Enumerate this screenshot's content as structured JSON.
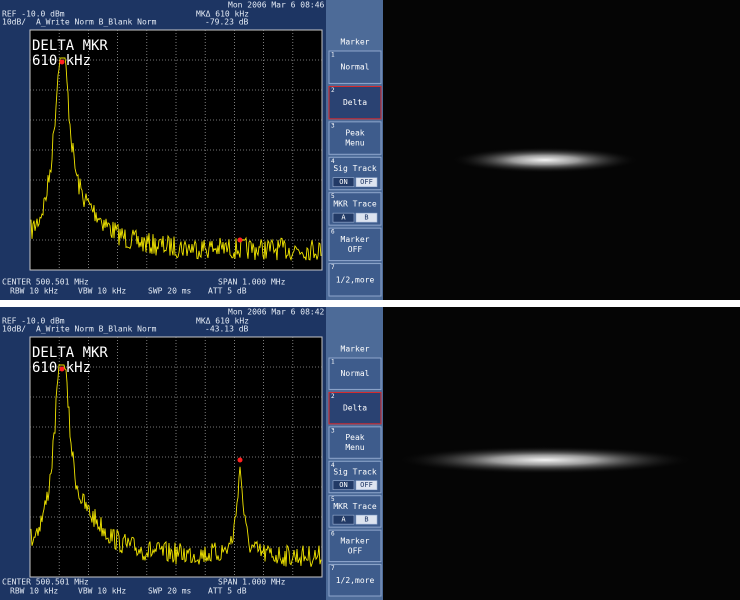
{
  "panels": [
    {
      "header": {
        "datetime": "Mon 2006 Mar  6 08:46",
        "ref": "REF -10.0 dBm",
        "marker": "MKΔ 610 kHz",
        "scale": "10dB/",
        "mode": "A_Write  Norm  B_Blank  Norm",
        "marker_level": "-79.23 dB"
      },
      "overlay": [
        "DELTA MKR",
        "610 kHz"
      ],
      "footer": {
        "center": "CENTER 500.501 MHz",
        "span": "SPAN 1.000 MHz",
        "rbw": "RBW 10 kHz",
        "vbw": "VBW 10 kHz",
        "swp": "SWP 20 ms",
        "att": "ATT 5 dB"
      },
      "menu": {
        "title": "Marker",
        "keys": [
          {
            "number": "1",
            "lines": [
              "Normal"
            ]
          },
          {
            "number": "2",
            "lines": [
              "Delta"
            ]
          },
          {
            "number": "3",
            "lines": [
              "Peak",
              "Menu"
            ]
          },
          {
            "number": "4",
            "lines": [
              "Sig Track"
            ],
            "options": [
              "ON",
              "OFF"
            ]
          },
          {
            "number": "5",
            "lines": [
              "MKR Trace"
            ],
            "options": [
              "A",
              "B"
            ]
          },
          {
            "number": "6",
            "lines": [
              "Marker",
              "OFF"
            ]
          },
          {
            "number": "7",
            "lines": [
              "1/2,more"
            ]
          }
        ]
      }
    },
    {
      "header": {
        "datetime": "Mon 2006 Mar  6 08:42",
        "ref": "REF -10.0 dBm",
        "marker": "MKΔ 610 kHz",
        "scale": "10dB/",
        "mode": "A_Write  Norm  B_Blank  Norm",
        "marker_level": "-43.13 dB"
      },
      "overlay": [
        "DELTA MKR",
        "610 kHz"
      ],
      "footer": {
        "center": "CENTER 500.501 MHz",
        "span": "SPAN 1.000 MHz",
        "rbw": "RBW 10 kHz",
        "vbw": "VBW 10 kHz",
        "swp": "SWP 20 ms",
        "att": "ATT 5 dB"
      },
      "menu": {
        "title": "Marker",
        "keys": [
          {
            "number": "1",
            "lines": [
              "Normal"
            ]
          },
          {
            "number": "2",
            "lines": [
              "Delta"
            ]
          },
          {
            "number": "3",
            "lines": [
              "Peak",
              "Menu"
            ]
          },
          {
            "number": "4",
            "lines": [
              "Sig Track"
            ],
            "options": [
              "ON",
              "OFF"
            ]
          },
          {
            "number": "5",
            "lines": [
              "MKR Trace"
            ],
            "options": [
              "A",
              "B"
            ]
          },
          {
            "number": "6",
            "lines": [
              "Marker",
              "OFF"
            ]
          },
          {
            "number": "7",
            "lines": [
              "1/2,more"
            ]
          }
        ]
      }
    }
  ]
}
